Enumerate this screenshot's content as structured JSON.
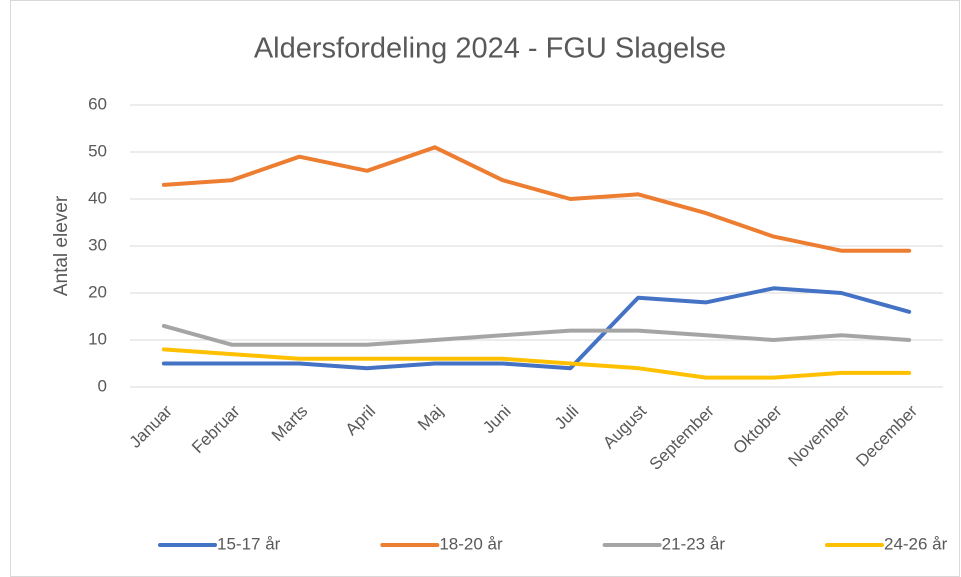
{
  "chart_data": {
    "type": "line",
    "title": "Aldersfordeling 2024 - FGU Slagelse",
    "y_label": "Antal elever",
    "categories": [
      "Januar",
      "Februar",
      "Marts",
      "April",
      "Maj",
      "Juni",
      "Juli",
      "August",
      "September",
      "Oktober",
      "November",
      "December"
    ],
    "series": [
      {
        "name": "15-17 år",
        "color": "#4472c4",
        "values": [
          5,
          5,
          5,
          4,
          5,
          5,
          4,
          19,
          18,
          21,
          20,
          16
        ]
      },
      {
        "name": "18-20 år",
        "color": "#ed7d31",
        "values": [
          43,
          44,
          49,
          46,
          51,
          44,
          40,
          41,
          37,
          32,
          29,
          29
        ]
      },
      {
        "name": "21-23 år",
        "color": "#a5a5a5",
        "values": [
          13,
          9,
          9,
          9,
          10,
          11,
          12,
          12,
          11,
          10,
          11,
          10
        ]
      },
      {
        "name": "24-26 år",
        "color": "#ffc000",
        "values": [
          8,
          7,
          6,
          6,
          6,
          6,
          5,
          4,
          2,
          2,
          3,
          3
        ]
      }
    ],
    "ylim": [
      0,
      60
    ],
    "yticks": [
      0,
      10,
      20,
      30,
      40,
      50,
      60
    ],
    "grid": true,
    "legend": "bottom"
  }
}
